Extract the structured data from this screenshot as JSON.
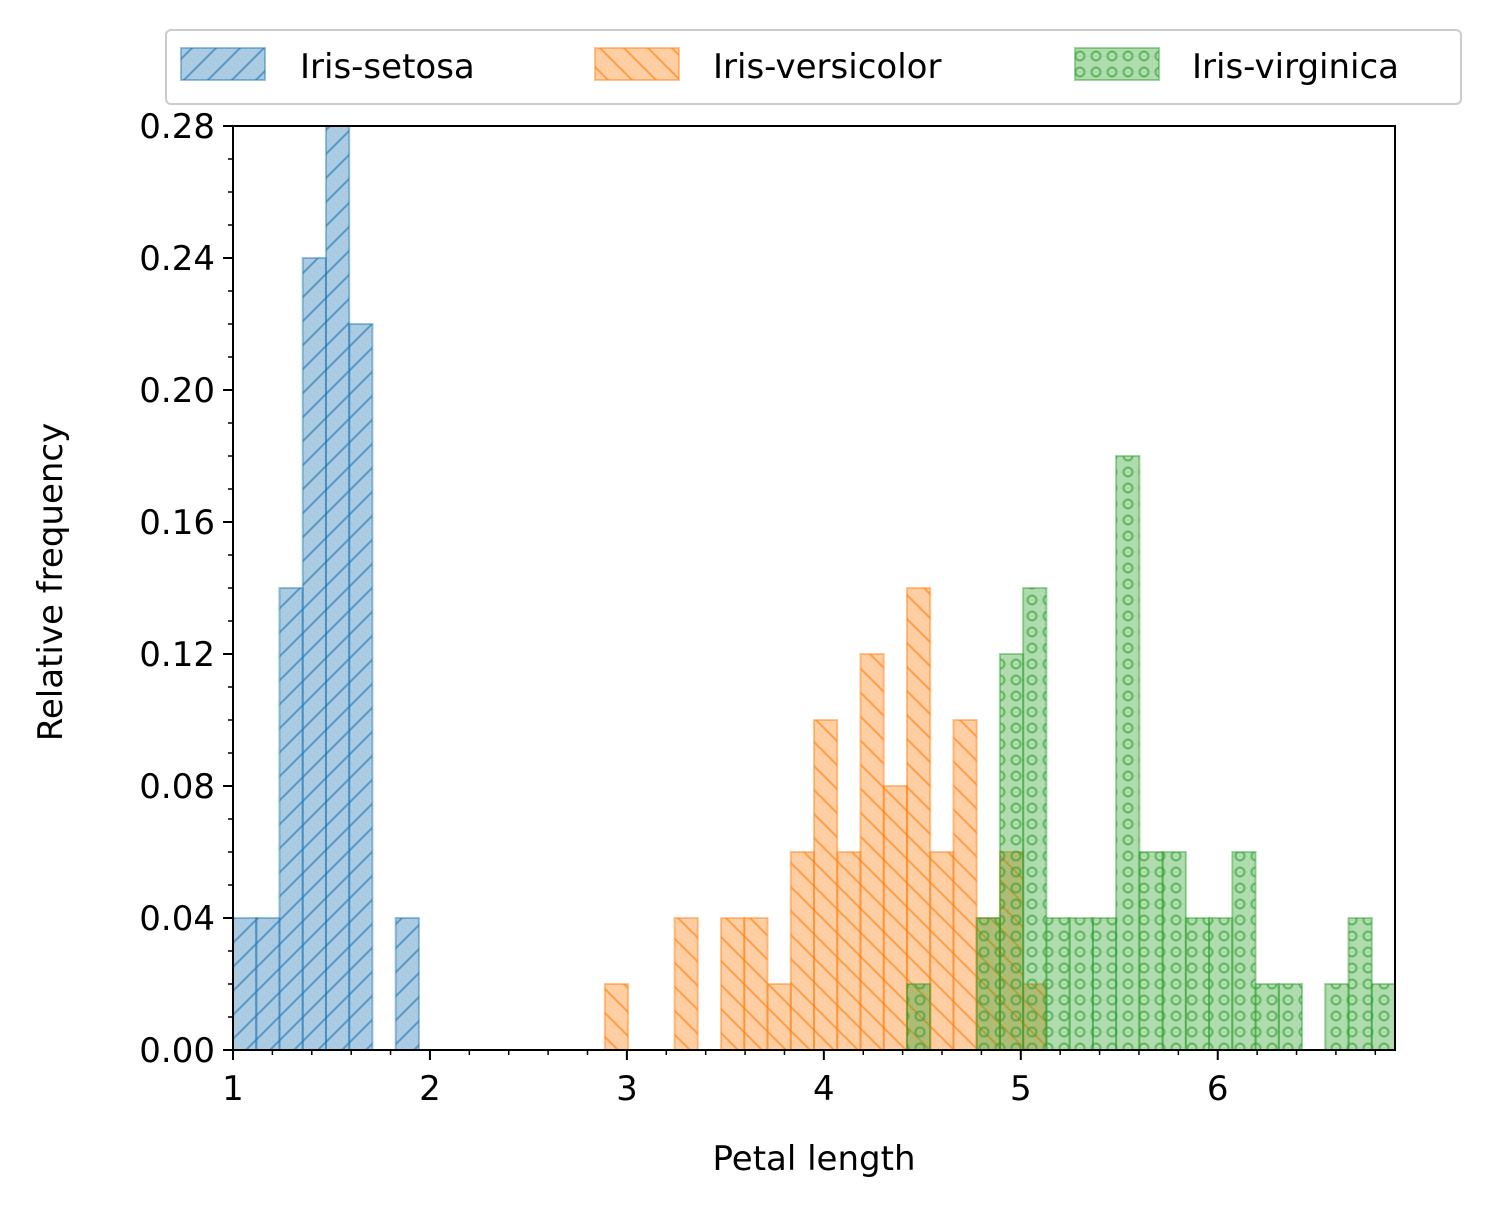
{
  "chart_data": {
    "type": "bar",
    "title": "",
    "xlabel": "Petal length",
    "ylabel": "Relative frequency",
    "xlim": [
      1.0,
      6.9
    ],
    "ylim": [
      0,
      0.28
    ],
    "xticks": [
      "1",
      "2",
      "3",
      "4",
      "5",
      "6"
    ],
    "yticks": [
      "0.00",
      "0.04",
      "0.08",
      "0.12",
      "0.16",
      "0.20",
      "0.24",
      "0.28"
    ],
    "grid": false,
    "legend_position": "top, above plot",
    "legend_columns": 3,
    "bin_width": 0.118,
    "bins_start": 1.0,
    "bins": [
      "1.000",
      "1.118",
      "1.236",
      "1.354",
      "1.472",
      "1.590",
      "1.708",
      "1.826",
      "1.944",
      "2.062",
      "2.180",
      "2.298",
      "2.416",
      "2.534",
      "2.652",
      "2.770",
      "2.888",
      "3.006",
      "3.124",
      "3.242",
      "3.360",
      "3.478",
      "3.596",
      "3.714",
      "3.832",
      "3.950",
      "4.068",
      "4.186",
      "4.304",
      "4.422",
      "4.540",
      "4.658",
      "4.776",
      "4.894",
      "5.012",
      "5.130",
      "5.248",
      "5.366",
      "5.484",
      "5.602",
      "5.720",
      "5.838",
      "5.956",
      "6.074",
      "6.192",
      "6.310",
      "6.428",
      "6.546",
      "6.664",
      "6.782"
    ],
    "series": [
      {
        "name": "Iris-setosa",
        "color": "#1f77b4",
        "hatch": "diagonal-forward",
        "values": [
          0.04,
          0.04,
          0.14,
          0.24,
          0.28,
          0.22,
          0,
          0.04,
          0,
          0,
          0,
          0,
          0,
          0,
          0,
          0,
          0,
          0,
          0,
          0,
          0,
          0,
          0,
          0,
          0,
          0,
          0,
          0,
          0,
          0,
          0,
          0,
          0,
          0,
          0,
          0,
          0,
          0,
          0,
          0,
          0,
          0,
          0,
          0,
          0,
          0,
          0,
          0,
          0,
          0
        ]
      },
      {
        "name": "Iris-versicolor",
        "color": "#ff7f0e",
        "hatch": "diagonal-backward",
        "values": [
          0,
          0,
          0,
          0,
          0,
          0,
          0,
          0,
          0,
          0,
          0,
          0,
          0,
          0,
          0,
          0,
          0.02,
          0,
          0,
          0.04,
          0,
          0.04,
          0.04,
          0.02,
          0.06,
          0.1,
          0.06,
          0.12,
          0.08,
          0.14,
          0.06,
          0.1,
          0.04,
          0.06,
          0.02,
          0,
          0,
          0,
          0,
          0,
          0,
          0,
          0,
          0,
          0,
          0,
          0,
          0,
          0,
          0
        ]
      },
      {
        "name": "Iris-virginica",
        "color": "#2ca02c",
        "hatch": "circles",
        "values": [
          0,
          0,
          0,
          0,
          0,
          0,
          0,
          0,
          0,
          0,
          0,
          0,
          0,
          0,
          0,
          0,
          0,
          0,
          0,
          0,
          0,
          0,
          0,
          0,
          0,
          0,
          0,
          0,
          0,
          0.02,
          0,
          0,
          0.04,
          0.12,
          0.14,
          0.04,
          0.04,
          0.04,
          0.18,
          0.06,
          0.06,
          0.04,
          0.04,
          0.06,
          0.02,
          0.02,
          0,
          0.02,
          0.04,
          0.02
        ]
      }
    ]
  }
}
